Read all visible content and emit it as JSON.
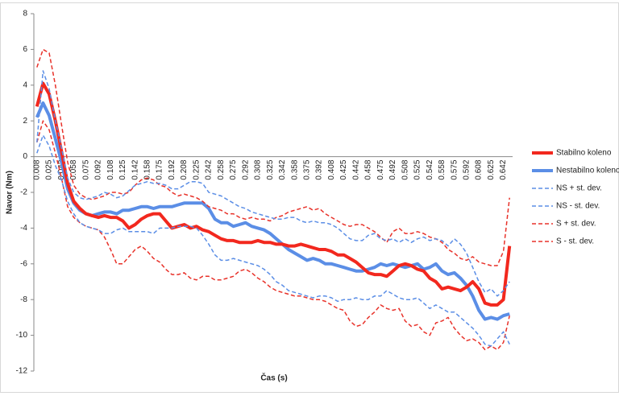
{
  "chart_data": {
    "type": "line",
    "xlabel": "Čas (s)",
    "ylabel": "Navor (Nm)",
    "categories": [
      "0.008",
      null,
      "0.025",
      null,
      "0.042",
      null,
      "0.058",
      null,
      "0.075",
      null,
      "0.092",
      null,
      "0.108",
      null,
      "0.125",
      null,
      "0.142",
      null,
      "0.158",
      null,
      "0.175",
      null,
      "0.192",
      null,
      "0.208",
      null,
      "0.225",
      null,
      "0.242",
      null,
      "0.258",
      null,
      "0.275",
      null,
      "0.292",
      null,
      "0.308",
      null,
      "0.325",
      null,
      "0.342",
      null,
      "0.358",
      null,
      "0.375",
      null,
      "0.392",
      null,
      "0.408",
      null,
      "0.425",
      null,
      "0.442",
      null,
      "0.458",
      null,
      "0.475",
      null,
      "0.492",
      null,
      "0.508",
      null,
      "0.525",
      null,
      "0.542",
      null,
      "0.558",
      null,
      "0.575",
      null,
      "0.592",
      null,
      "0.608",
      null,
      "0.625",
      null,
      "0.642",
      null
    ],
    "ylim": [
      -12,
      8
    ],
    "yticks": [
      -12,
      -10,
      -8,
      -6,
      -4,
      -2,
      0,
      2,
      4,
      6,
      8
    ],
    "grid": false,
    "legend_position": "right",
    "series": [
      {
        "name": "Stabilno koleno",
        "color": "#f2281e",
        "line_width": 4,
        "dashed": false,
        "values": [
          2.8,
          4.1,
          3.5,
          2.0,
          0.3,
          -1.5,
          -2.5,
          -2.9,
          -3.2,
          -3.3,
          -3.4,
          -3.3,
          -3.4,
          -3.4,
          -3.6,
          -4.0,
          -3.8,
          -3.5,
          -3.3,
          -3.2,
          -3.2,
          -3.6,
          -4.0,
          -3.9,
          -3.8,
          -4.0,
          -3.9,
          -4.1,
          -4.2,
          -4.4,
          -4.6,
          -4.7,
          -4.7,
          -4.8,
          -4.8,
          -4.8,
          -4.7,
          -4.8,
          -4.8,
          -4.9,
          -4.9,
          -5.0,
          -5.0,
          -4.9,
          -5.0,
          -5.1,
          -5.2,
          -5.2,
          -5.3,
          -5.5,
          -5.5,
          -5.7,
          -5.9,
          -6.2,
          -6.5,
          -6.6,
          -6.6,
          -6.7,
          -6.4,
          -6.1,
          -6.0,
          -6.1,
          -6.3,
          -6.4,
          -6.8,
          -7.0,
          -7.4,
          -7.3,
          -7.4,
          -7.5,
          -7.3,
          -7.0,
          -7.4,
          -8.2,
          -8.3,
          -8.3,
          -8.0,
          -5.0
        ]
      },
      {
        "name": "Nestabilno koleno",
        "color": "#5b8ee6",
        "line_width": 4,
        "dashed": false,
        "values": [
          2.2,
          3.0,
          2.3,
          1.0,
          -0.3,
          -1.8,
          -2.6,
          -3.0,
          -3.2,
          -3.3,
          -3.2,
          -3.1,
          -3.1,
          -3.2,
          -3.0,
          -3.0,
          -2.9,
          -2.8,
          -2.8,
          -2.9,
          -2.8,
          -2.8,
          -2.8,
          -2.7,
          -2.6,
          -2.6,
          -2.6,
          -2.6,
          -2.9,
          -3.5,
          -3.7,
          -3.7,
          -3.9,
          -3.8,
          -3.7,
          -3.9,
          -4.0,
          -4.1,
          -4.3,
          -4.6,
          -4.9,
          -5.2,
          -5.4,
          -5.6,
          -5.8,
          -5.7,
          -5.8,
          -6.0,
          -6.0,
          -6.1,
          -6.2,
          -6.3,
          -6.4,
          -6.4,
          -6.3,
          -6.2,
          -6.0,
          -6.1,
          -6.0,
          -6.1,
          -6.2,
          -6.1,
          -6.0,
          -6.3,
          -6.2,
          -6.0,
          -6.4,
          -6.6,
          -6.5,
          -6.8,
          -7.2,
          -7.8,
          -8.6,
          -9.1,
          -9.0,
          -9.1,
          -8.9,
          -8.8
        ]
      },
      {
        "name": "NS + st. dev.",
        "color": "#5b8ee6",
        "line_width": 1.5,
        "dashed": true,
        "values": [
          0.8,
          4.8,
          3.8,
          2.0,
          0.5,
          -1.2,
          -2.0,
          -2.3,
          -2.4,
          -2.3,
          -2.2,
          -2.0,
          -2.1,
          -2.3,
          -2.2,
          -1.9,
          -1.6,
          -1.5,
          -1.4,
          -1.5,
          -1.5,
          -1.6,
          -1.8,
          -1.8,
          -1.6,
          -1.4,
          -1.4,
          -1.5,
          -2.0,
          -2.1,
          -2.2,
          -2.4,
          -2.6,
          -2.8,
          -2.9,
          -3.1,
          -3.2,
          -3.3,
          -3.4,
          -3.5,
          -3.5,
          -3.4,
          -3.4,
          -3.6,
          -3.7,
          -3.6,
          -3.7,
          -3.7,
          -3.8,
          -4.0,
          -4.3,
          -4.6,
          -4.7,
          -4.7,
          -4.4,
          -4.3,
          -4.6,
          -4.7,
          -4.6,
          -4.8,
          -4.6,
          -4.8,
          -4.6,
          -4.5,
          -4.7,
          -4.6,
          -4.7,
          -5.0,
          -4.6,
          -4.9,
          -5.4,
          -6.2,
          -7.0,
          -7.6,
          -7.4,
          -7.8,
          -7.5,
          -7.0
        ]
      },
      {
        "name": "NS - st. dev.",
        "color": "#5b8ee6",
        "line_width": 1.5,
        "dashed": true,
        "values": [
          0.2,
          1.2,
          0.6,
          -0.5,
          -1.3,
          -2.5,
          -3.2,
          -3.7,
          -3.9,
          -4.0,
          -4.1,
          -4.3,
          -4.3,
          -4.1,
          -4.0,
          -4.2,
          -4.2,
          -4.2,
          -4.2,
          -4.3,
          -4.0,
          -4.0,
          -4.0,
          -3.9,
          -3.9,
          -3.9,
          -4.0,
          -4.4,
          -4.9,
          -5.5,
          -5.8,
          -5.8,
          -5.7,
          -5.8,
          -5.9,
          -6.0,
          -6.1,
          -6.3,
          -6.6,
          -7.0,
          -7.2,
          -7.5,
          -7.6,
          -7.7,
          -7.8,
          -7.9,
          -7.8,
          -7.8,
          -7.9,
          -8.1,
          -8.0,
          -8.0,
          -7.9,
          -8.0,
          -8.0,
          -7.8,
          -7.8,
          -7.5,
          -7.7,
          -7.9,
          -8.0,
          -8.0,
          -7.9,
          -8.2,
          -8.5,
          -8.3,
          -8.5,
          -8.7,
          -8.7,
          -9.0,
          -9.3,
          -9.6,
          -10.0,
          -10.5,
          -10.6,
          -10.2,
          -9.8,
          -10.5
        ]
      },
      {
        "name": "S + st. dev.",
        "color": "#e8322a",
        "line_width": 1.5,
        "dashed": true,
        "values": [
          5.0,
          6.0,
          5.8,
          4.0,
          1.8,
          -0.3,
          -1.6,
          -2.1,
          -2.3,
          -2.4,
          -2.3,
          -2.2,
          -2.0,
          -2.0,
          -2.1,
          -2.0,
          -1.6,
          -1.3,
          -1.2,
          -1.3,
          -1.6,
          -1.7,
          -2.0,
          -2.2,
          -2.1,
          -2.2,
          -2.3,
          -2.5,
          -2.8,
          -2.9,
          -3.0,
          -3.2,
          -3.2,
          -3.4,
          -3.5,
          -3.4,
          -3.5,
          -3.5,
          -3.6,
          -3.4,
          -3.3,
          -3.1,
          -3.0,
          -2.9,
          -2.8,
          -3.0,
          -2.9,
          -3.2,
          -3.4,
          -3.6,
          -3.8,
          -3.9,
          -3.8,
          -3.8,
          -4.0,
          -4.2,
          -4.5,
          -4.8,
          -4.2,
          -4.0,
          -4.3,
          -4.3,
          -4.2,
          -4.3,
          -4.5,
          -4.6,
          -4.8,
          -5.2,
          -5.4,
          -5.7,
          -5.8,
          -5.6,
          -5.9,
          -6.0,
          -6.1,
          -6.1,
          -5.3,
          -2.3
        ]
      },
      {
        "name": "S - st. dev.",
        "color": "#e8322a",
        "line_width": 1.5,
        "dashed": true,
        "values": [
          0.8,
          2.0,
          1.5,
          0.2,
          -1.2,
          -2.8,
          -3.4,
          -3.7,
          -3.9,
          -4.0,
          -4.1,
          -4.5,
          -5.2,
          -6.0,
          -6.0,
          -5.6,
          -5.2,
          -5.0,
          -5.3,
          -5.7,
          -5.9,
          -6.3,
          -6.6,
          -6.6,
          -6.5,
          -6.8,
          -6.9,
          -6.7,
          -6.7,
          -6.9,
          -6.9,
          -6.8,
          -6.7,
          -6.4,
          -6.3,
          -6.5,
          -6.8,
          -7.0,
          -7.3,
          -7.5,
          -7.6,
          -7.7,
          -7.8,
          -7.8,
          -7.9,
          -8.0,
          -8.0,
          -8.1,
          -8.3,
          -8.5,
          -8.6,
          -9.2,
          -9.5,
          -9.4,
          -9.0,
          -8.7,
          -8.3,
          -8.5,
          -8.6,
          -8.5,
          -9.2,
          -9.5,
          -9.4,
          -9.8,
          -10.0,
          -9.3,
          -9.2,
          -9.0,
          -9.6,
          -10.0,
          -10.3,
          -10.2,
          -10.4,
          -10.8,
          -10.6,
          -10.8,
          -10.4,
          -8.9
        ]
      }
    ]
  }
}
